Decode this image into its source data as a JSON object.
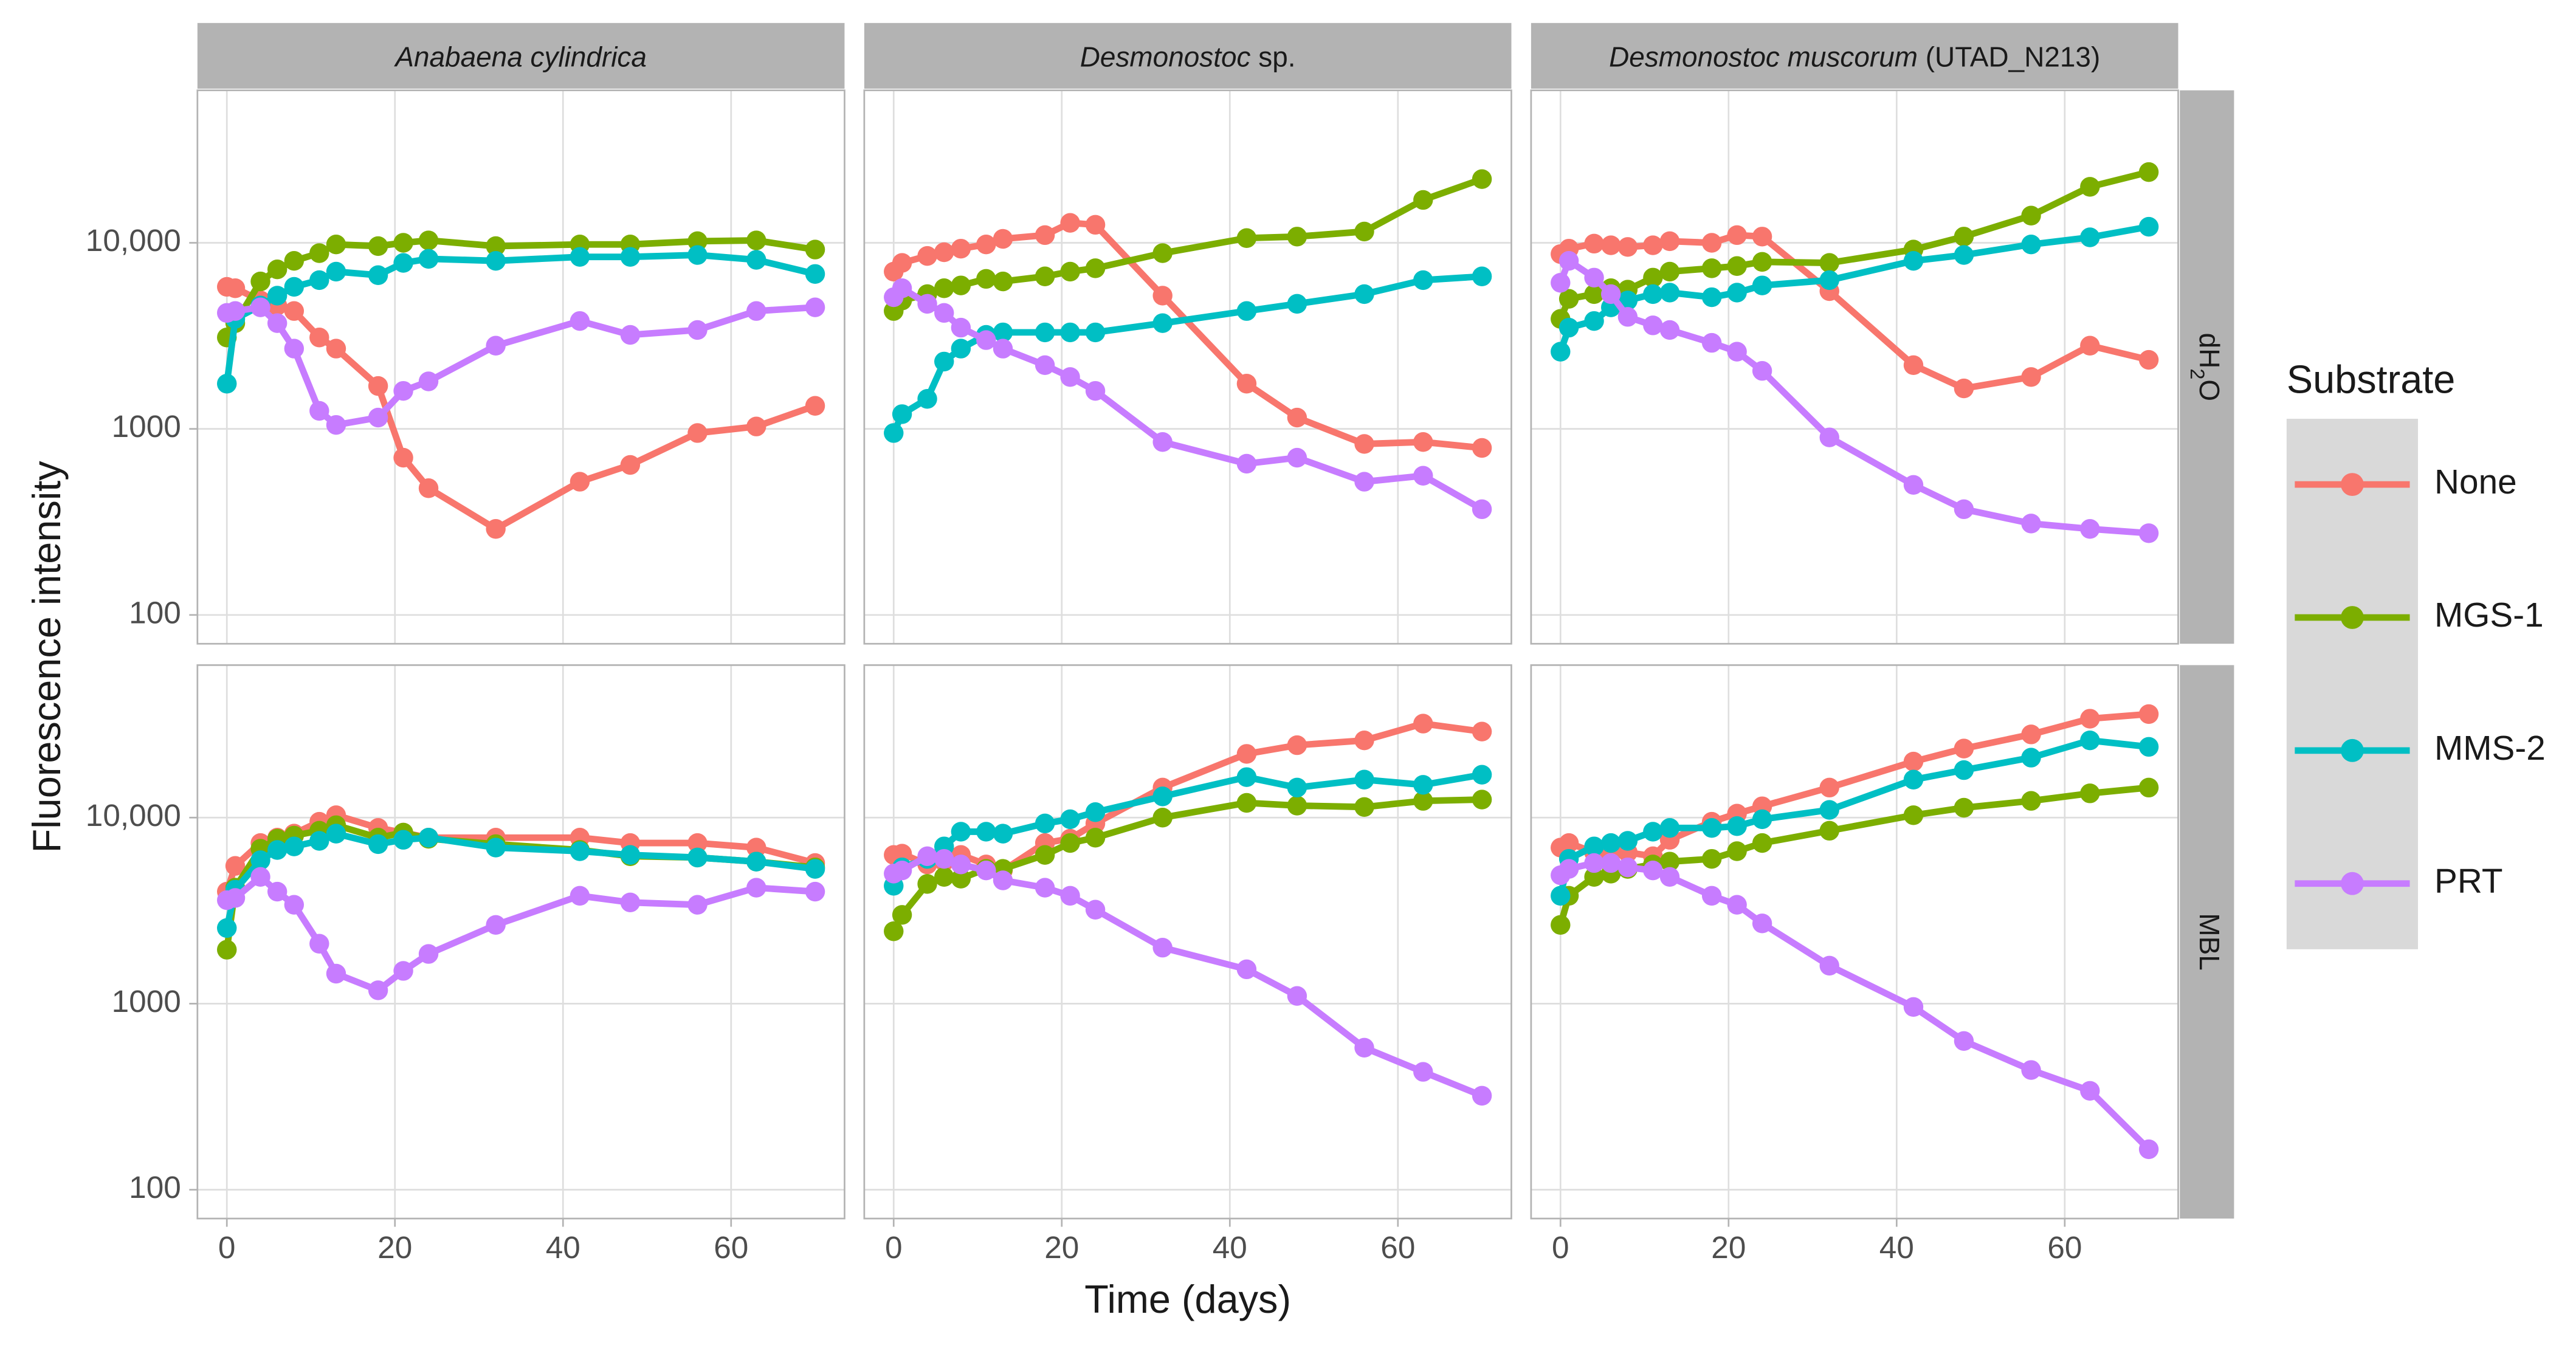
{
  "chart_data": {
    "type": "line",
    "x_label": "Time (days)",
    "y_label": "Fluorescence intensity",
    "legend_title": "Substrate",
    "legend": "right",
    "log_y": true,
    "grid": true,
    "xlim": [
      -3.5,
      73.5
    ],
    "ylim": [
      70,
      66000
    ],
    "xticks": [
      0,
      20,
      40,
      60
    ],
    "yticks": [
      100,
      1000,
      {
        "value": 10000,
        "label": "10,000"
      }
    ],
    "facet_columns": [
      {
        "name": "Anabaena cylindrica"
      },
      {
        "name": "Desmonostoc",
        "suffix": "sp."
      },
      {
        "name": "Desmonostoc muscorum",
        "suffix": "(UTAD_N213)"
      }
    ],
    "facet_rows": [
      {
        "parts": [
          "dH",
          "2",
          "O"
        ]
      },
      {
        "parts": [
          "MBL"
        ]
      }
    ],
    "series": [
      {
        "name": "None",
        "color": "#F8766D"
      },
      {
        "name": "MGS-1",
        "color": "#7CAE00"
      },
      {
        "name": "MMS-2",
        "color": "#00BFC4"
      },
      {
        "name": "PRT",
        "color": "#C77CFF"
      }
    ],
    "x": [
      0,
      1,
      4,
      6,
      8,
      11,
      13,
      18,
      21,
      24,
      32,
      42,
      48,
      56,
      63,
      70
    ],
    "panels": [
      {
        "column": 0,
        "row": 0,
        "values": [
          [
            5800,
            5700,
            4900,
            4600,
            4300,
            3100,
            2700,
            1700,
            700,
            480,
            290,
            520,
            640,
            950,
            1030,
            1330
          ],
          [
            3100,
            3700,
            6200,
            7200,
            8000,
            8800,
            9800,
            9600,
            10000,
            10300,
            9600,
            9800,
            9800,
            10200,
            10300,
            9200
          ],
          [
            1750,
            3900,
            4600,
            5200,
            5800,
            6300,
            7000,
            6700,
            7800,
            8200,
            8000,
            8400,
            8400,
            8600,
            8100,
            6800
          ],
          [
            4200,
            4300,
            4500,
            3700,
            2700,
            1250,
            1050,
            1150,
            1600,
            1800,
            2800,
            3800,
            3200,
            3400,
            4300,
            4500
          ]
        ]
      },
      {
        "column": 1,
        "row": 0,
        "values": [
          [
            7000,
            7800,
            8500,
            8900,
            9300,
            9800,
            10500,
            11000,
            12800,
            12500,
            5200,
            1750,
            1150,
            830,
            850,
            790
          ],
          [
            4300,
            4900,
            5300,
            5700,
            5900,
            6400,
            6200,
            6600,
            7000,
            7300,
            8800,
            10600,
            10800,
            11500,
            17000,
            22000
          ],
          [
            950,
            1200,
            1450,
            2300,
            2700,
            3200,
            3300,
            3300,
            3300,
            3300,
            3700,
            4300,
            4700,
            5300,
            6300,
            6600
          ],
          [
            5100,
            5700,
            4700,
            4200,
            3500,
            3000,
            2700,
            2200,
            1900,
            1600,
            850,
            650,
            700,
            520,
            560,
            370
          ]
        ]
      },
      {
        "column": 2,
        "row": 0,
        "values": [
          [
            8700,
            9300,
            9900,
            9700,
            9500,
            9700,
            10200,
            10000,
            11000,
            10800,
            5500,
            2200,
            1650,
            1900,
            2800,
            2350
          ],
          [
            3900,
            5000,
            5300,
            5700,
            5600,
            6500,
            7000,
            7300,
            7500,
            7900,
            7800,
            9200,
            10800,
            14000,
            20000,
            24000
          ],
          [
            2600,
            3500,
            3800,
            4500,
            4900,
            5300,
            5400,
            5100,
            5400,
            5900,
            6300,
            8000,
            8600,
            9800,
            10700,
            12200
          ],
          [
            6100,
            8000,
            6500,
            5300,
            4000,
            3600,
            3400,
            2900,
            2600,
            2050,
            900,
            500,
            370,
            310,
            290,
            275
          ]
        ]
      },
      {
        "column": 0,
        "row": 1,
        "values": [
          [
            4000,
            5500,
            7300,
            7800,
            8200,
            9500,
            10300,
            8800,
            8300,
            7800,
            7800,
            7800,
            7300,
            7300,
            6900,
            5700
          ],
          [
            1950,
            4200,
            6800,
            7700,
            8000,
            8500,
            9100,
            7800,
            8300,
            7700,
            7200,
            6700,
            6200,
            6100,
            5800,
            5400
          ],
          [
            2550,
            4100,
            5900,
            6700,
            7000,
            7500,
            8200,
            7200,
            7600,
            7800,
            6900,
            6600,
            6300,
            6100,
            5800,
            5300
          ],
          [
            3600,
            3700,
            4800,
            4000,
            3400,
            2100,
            1450,
            1180,
            1500,
            1850,
            2650,
            3800,
            3500,
            3400,
            4200,
            4000
          ]
        ]
      },
      {
        "column": 1,
        "row": 1,
        "values": [
          [
            6300,
            6400,
            5600,
            5800,
            6300,
            5600,
            5200,
            7300,
            7700,
            9300,
            14500,
            22000,
            24500,
            26000,
            32000,
            29000
          ],
          [
            2450,
            3000,
            4400,
            4800,
            4700,
            5300,
            5300,
            6300,
            7300,
            7800,
            10000,
            12000,
            11600,
            11400,
            12300,
            12500
          ],
          [
            4300,
            5400,
            6000,
            7000,
            8400,
            8400,
            8200,
            9300,
            9800,
            10700,
            13000,
            16500,
            14500,
            16000,
            15000,
            17000
          ],
          [
            5000,
            5200,
            6200,
            6000,
            5600,
            5200,
            4600,
            4200,
            3800,
            3200,
            2000,
            1530,
            1100,
            580,
            430,
            320
          ]
        ]
      },
      {
        "column": 2,
        "row": 1,
        "values": [
          [
            6900,
            7300,
            6500,
            6400,
            6500,
            6200,
            7600,
            9500,
            10500,
            11500,
            14500,
            20000,
            23500,
            28000,
            34000,
            36000
          ],
          [
            2650,
            3800,
            4800,
            5000,
            5300,
            5600,
            5800,
            6000,
            6600,
            7300,
            8500,
            10300,
            11300,
            12300,
            13500,
            14500
          ],
          [
            3800,
            6000,
            7000,
            7300,
            7500,
            8400,
            8800,
            8800,
            9000,
            9800,
            11000,
            16000,
            18000,
            21000,
            26000,
            24000
          ],
          [
            4900,
            5300,
            5700,
            5700,
            5400,
            5200,
            4800,
            3800,
            3400,
            2700,
            1600,
            960,
            630,
            440,
            340,
            165
          ]
        ]
      }
    ]
  }
}
